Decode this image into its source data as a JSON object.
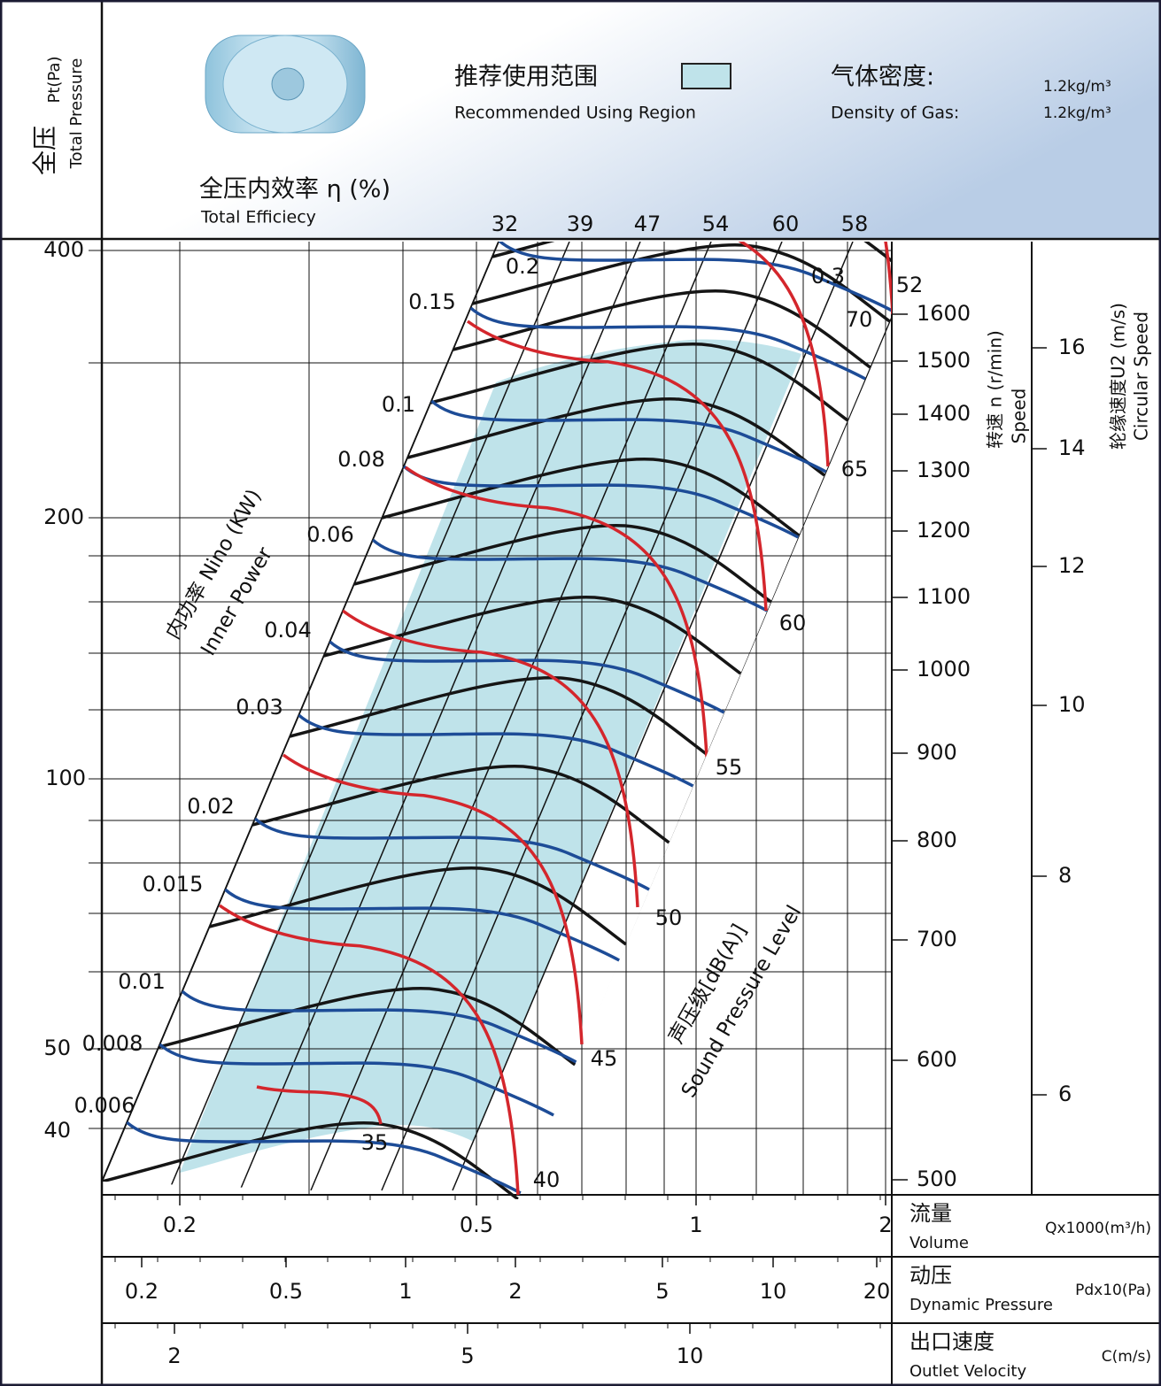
{
  "header": {
    "pressure_cn": "全压",
    "pressure_unit": "Pt(Pa)",
    "pressure_en": "Total Pressure",
    "region_cn": "推荐使用范围",
    "region_en": "Recommended Using Region",
    "density_cn": "气体密度:",
    "density_en": "Density of Gas:",
    "density_value_cn": "1.2kg/m³",
    "density_value_en": "1.2kg/m³",
    "efficiency_cn": "全压内效率 η (%)",
    "efficiency_en": "Total Efficiecy"
  },
  "efficiency": {
    "labels": [
      "32",
      "39",
      "47",
      "54",
      "60",
      "58",
      "52"
    ]
  },
  "pressure": {
    "ticks": [
      "400",
      "200",
      "100",
      "50",
      "40"
    ]
  },
  "speed": {
    "title_cn": "转速 n (r/min)",
    "title_en": "Speed",
    "ticks": [
      "1600",
      "1500",
      "1400",
      "1300",
      "1200",
      "1100",
      "1000",
      "900",
      "800",
      "700",
      "600",
      "500"
    ]
  },
  "circular_speed": {
    "title_cn": "轮缘速度U2 (m/s)",
    "title_en": "Circular Speed",
    "ticks": [
      "16",
      "14",
      "12",
      "10",
      "8",
      "6"
    ]
  },
  "power": {
    "title_cn": "内功率 Nino (KW)",
    "title_en": "Inner Power",
    "labels": [
      "0.006",
      "0.008",
      "0.01",
      "0.015",
      "0.02",
      "0.03",
      "0.04",
      "0.06",
      "0.08",
      "0.1",
      "0.15",
      "0.2",
      "0.3"
    ]
  },
  "sound": {
    "title_cn": "声压级[dB(A)]",
    "title_en": "Sound Pressure Level",
    "labels": [
      "35",
      "40",
      "45",
      "50",
      "55",
      "60",
      "65",
      "70"
    ]
  },
  "scales": [
    {
      "title_cn": "流量",
      "title_en": "Volume",
      "unit": "Qx1000(m³/h)",
      "ticks": [
        "0.2",
        "0.5",
        "1",
        "2"
      ]
    },
    {
      "title_cn": "动压",
      "title_en": "Dynamic Pressure",
      "unit": "Pdx10(Pa)",
      "ticks": [
        "0.2",
        "0.5",
        "1",
        "2",
        "5",
        "10",
        "20"
      ]
    },
    {
      "title_cn": "出口速度",
      "title_en": "Outlet Velocity",
      "unit": "C(m/s)",
      "ticks": [
        "2",
        "5",
        "10"
      ]
    }
  ]
}
